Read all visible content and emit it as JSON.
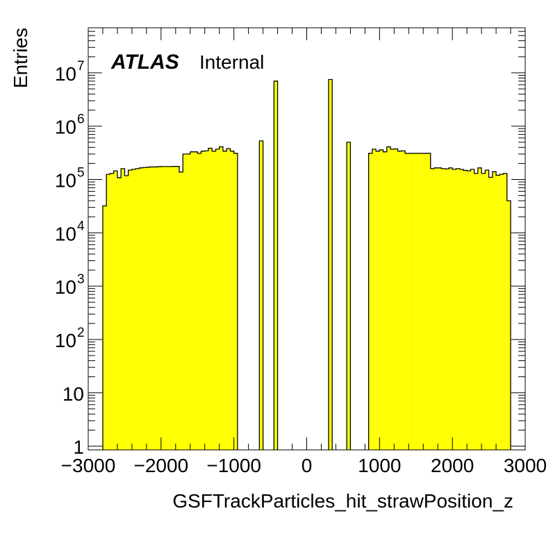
{
  "chart_data": {
    "type": "bar",
    "subtype": "histogram",
    "title": "",
    "xlabel": "GSFTrackParticles_hit_strawPosition_z",
    "ylabel": "Entries",
    "xlim": [
      -3000,
      3000
    ],
    "ylim": [
      0.85,
      70000000
    ],
    "ylog": true,
    "x_ticks": [
      "−3000",
      "−2000",
      "−1000",
      "0",
      "1000",
      "2000",
      "3000"
    ],
    "y_ticks": [
      {
        "value": 1,
        "label": "1",
        "exp": ""
      },
      {
        "value": 10,
        "label": "10",
        "exp": ""
      },
      {
        "value": 100,
        "label": "10",
        "exp": "2"
      },
      {
        "value": 1000,
        "label": "10",
        "exp": "3"
      },
      {
        "value": 10000,
        "label": "10",
        "exp": "4"
      },
      {
        "value": 100000,
        "label": "10",
        "exp": "5"
      },
      {
        "value": 1000000,
        "label": "10",
        "exp": "6"
      },
      {
        "value": 10000000,
        "label": "10",
        "exp": "7"
      }
    ],
    "fill_color": "#ffff00",
    "line_color": "#000000",
    "bin_edges": [
      -2800,
      -2750,
      -2700,
      -2650,
      -2600,
      -2550,
      -2500,
      -2450,
      -2400,
      -2350,
      -2300,
      -2250,
      -2200,
      -2150,
      -2100,
      -2050,
      -2000,
      -1950,
      -1900,
      -1850,
      -1800,
      -1750,
      -1700,
      -1650,
      -1600,
      -1550,
      -1500,
      -1450,
      -1400,
      -1350,
      -1300,
      -1250,
      -1200,
      -1150,
      -1100,
      -1050,
      -1000,
      -950,
      -650,
      -600,
      -450,
      -400,
      300,
      350,
      550,
      600,
      850,
      900,
      950,
      1000,
      1050,
      1100,
      1150,
      1200,
      1250,
      1300,
      1350,
      1400,
      1450,
      1500,
      1550,
      1600,
      1650,
      1700,
      1750,
      1800,
      1850,
      1900,
      1950,
      2000,
      2050,
      2100,
      2150,
      2200,
      2250,
      2300,
      2350,
      2400,
      2450,
      2500,
      2550,
      2600,
      2650,
      2700,
      2750,
      2800
    ],
    "values": [
      32000,
      125000,
      130000,
      145000,
      108000,
      160000,
      118000,
      150000,
      155000,
      160000,
      165000,
      168000,
      170000,
      172000,
      172000,
      174000,
      175000,
      175000,
      175000,
      176000,
      176000,
      138000,
      300000,
      300000,
      330000,
      330000,
      310000,
      340000,
      345000,
      385000,
      340000,
      370000,
      410000,
      340000,
      380000,
      340000,
      310000,
      0,
      530000,
      0,
      7000000,
      0,
      7500000,
      0,
      500000,
      0,
      310000,
      370000,
      340000,
      360000,
      330000,
      410000,
      370000,
      375000,
      340000,
      345000,
      310000,
      310000,
      310000,
      310000,
      310000,
      310000,
      310000,
      160000,
      165000,
      165000,
      160000,
      158000,
      165000,
      155000,
      160000,
      155000,
      148000,
      145000,
      155000,
      130000,
      165000,
      130000,
      150000,
      110000,
      140000,
      120000,
      125000,
      130000,
      40000
    ]
  },
  "labels": {
    "atlas": "ATLAS",
    "internal": "Internal"
  }
}
